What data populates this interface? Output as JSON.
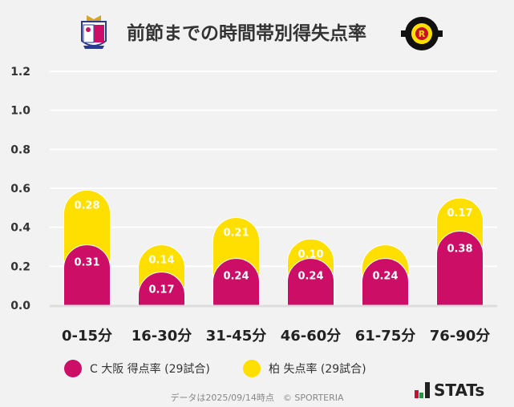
{
  "title": "前節までの時間帯別得失点率",
  "colors": {
    "cerezo": "#cc0e66",
    "kashiwa": "#ffdf00",
    "grid": "#ffffff",
    "background": "#f2f2f2"
  },
  "chart_data": {
    "type": "bar",
    "stacked": true,
    "categories": [
      "0-15分",
      "16-30分",
      "31-45分",
      "46-60分",
      "61-75分",
      "76-90分"
    ],
    "series": [
      {
        "name": "C大阪 得点率 (29試合)",
        "values": [
          0.31,
          0.17,
          0.24,
          0.24,
          0.24,
          0.38
        ],
        "labels": [
          "0.31",
          "0.17",
          "0.24",
          "0.24",
          "0.24",
          "0.38"
        ]
      },
      {
        "name": "柏 失点率 (29試合)",
        "values": [
          0.28,
          0.14,
          0.21,
          0.1,
          0.07,
          0.17
        ],
        "labels": [
          "0.28",
          "0.14",
          "0.21",
          "0.10",
          "",
          "0.17"
        ]
      }
    ],
    "ylim": [
      0,
      1.2
    ],
    "yticks": [
      "0.0",
      "0.2",
      "0.4",
      "0.6",
      "0.8",
      "1.0",
      "1.2"
    ],
    "grid": true,
    "legend": "bottom"
  },
  "legend": [
    {
      "label": "C 大阪 得点率 (29試合)"
    },
    {
      "label": "柏 失点率 (29試合)"
    }
  ],
  "footer": "データは2025/09/14時点　© SPORTERIA",
  "brand": "STATs"
}
